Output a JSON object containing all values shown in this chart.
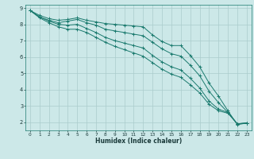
{
  "xlabel": "Humidex (Indice chaleur)",
  "bg_color": "#cce8e8",
  "grid_color": "#aacccc",
  "line_color": "#1a7a6e",
  "xlim": [
    -0.5,
    23.5
  ],
  "ylim": [
    1.5,
    9.2
  ],
  "xticks": [
    0,
    1,
    2,
    3,
    4,
    5,
    6,
    7,
    8,
    9,
    10,
    11,
    12,
    13,
    14,
    15,
    16,
    17,
    18,
    19,
    20,
    21,
    22,
    23
  ],
  "yticks": [
    2,
    3,
    4,
    5,
    6,
    7,
    8,
    9
  ],
  "series": [
    [
      8.85,
      8.55,
      8.35,
      8.25,
      8.3,
      8.4,
      8.25,
      8.15,
      8.05,
      8.0,
      7.95,
      7.9,
      7.85,
      7.35,
      6.95,
      6.7,
      6.7,
      6.1,
      5.4,
      4.4,
      3.6,
      2.7,
      1.85,
      1.95
    ],
    [
      8.85,
      8.45,
      8.25,
      8.1,
      8.2,
      8.3,
      8.1,
      7.95,
      7.7,
      7.6,
      7.5,
      7.4,
      7.3,
      6.9,
      6.5,
      6.2,
      6.05,
      5.5,
      4.85,
      3.9,
      3.2,
      2.6,
      1.9,
      1.95
    ],
    [
      8.85,
      8.45,
      8.2,
      8.0,
      7.95,
      8.0,
      7.75,
      7.5,
      7.2,
      7.0,
      6.85,
      6.7,
      6.55,
      6.1,
      5.7,
      5.4,
      5.2,
      4.7,
      4.1,
      3.3,
      2.8,
      2.6,
      1.9,
      1.95
    ],
    [
      8.85,
      8.4,
      8.1,
      7.85,
      7.7,
      7.7,
      7.5,
      7.2,
      6.9,
      6.65,
      6.45,
      6.25,
      6.05,
      5.65,
      5.25,
      4.95,
      4.75,
      4.3,
      3.8,
      3.1,
      2.7,
      2.55,
      1.9,
      1.95
    ]
  ]
}
